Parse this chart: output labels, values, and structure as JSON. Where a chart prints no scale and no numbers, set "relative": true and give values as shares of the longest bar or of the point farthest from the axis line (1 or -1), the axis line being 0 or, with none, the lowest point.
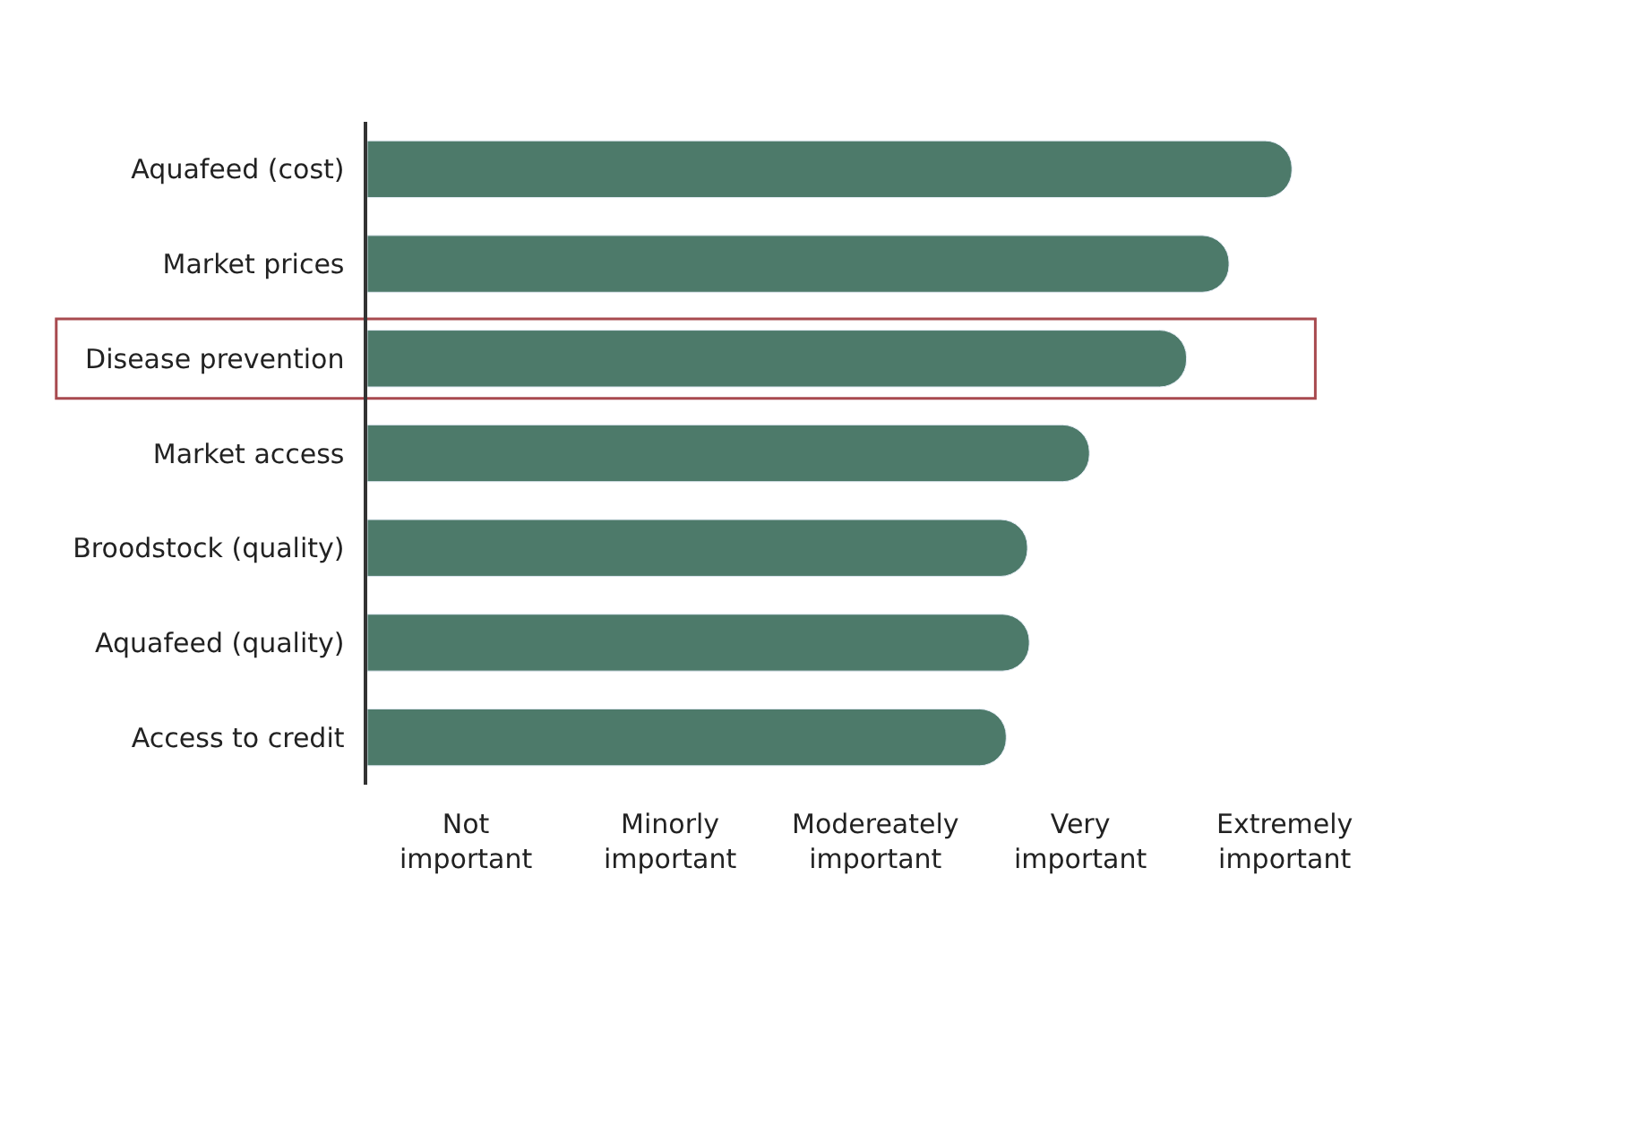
{
  "chart_data": {
    "type": "bar",
    "orientation": "horizontal",
    "relative": true,
    "categories": [
      "Aquafeed (cost)",
      "Market prices",
      "Disease prevention",
      "Market access",
      "Broodstock (quality)",
      "Aquafeed (quality)",
      "Access to credit"
    ],
    "values": [
      1,
      0.932,
      0.886,
      0.781,
      0.714,
      0.716,
      0.691
    ],
    "color": "#4d7a6a",
    "annotations": [
      "Not important",
      "Minorly important",
      "Modereately important",
      "Very important",
      "Extremely important"
    ],
    "grid": false
  }
}
